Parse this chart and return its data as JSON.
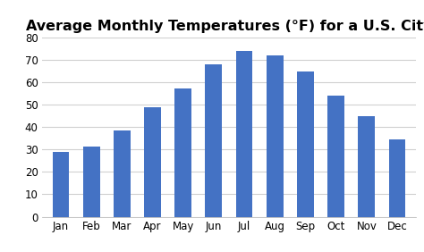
{
  "title": "Average Monthly Temperatures (°F) for a U.S. City",
  "months": [
    "Jan",
    "Feb",
    "Mar",
    "Apr",
    "May",
    "Jun",
    "Jul",
    "Aug",
    "Sep",
    "Oct",
    "Nov",
    "Dec"
  ],
  "temperatures": [
    29,
    31.5,
    38.5,
    49,
    57.5,
    68,
    74,
    72,
    65,
    54,
    45,
    34.5
  ],
  "bar_color": "#4472C4",
  "ylim": [
    0,
    80
  ],
  "yticks": [
    0,
    10,
    20,
    30,
    40,
    50,
    60,
    70,
    80
  ],
  "background_color": "#ffffff",
  "title_fontsize": 11.5,
  "tick_fontsize": 8.5,
  "grid_color": "#d0d0d0",
  "bar_width": 0.55
}
